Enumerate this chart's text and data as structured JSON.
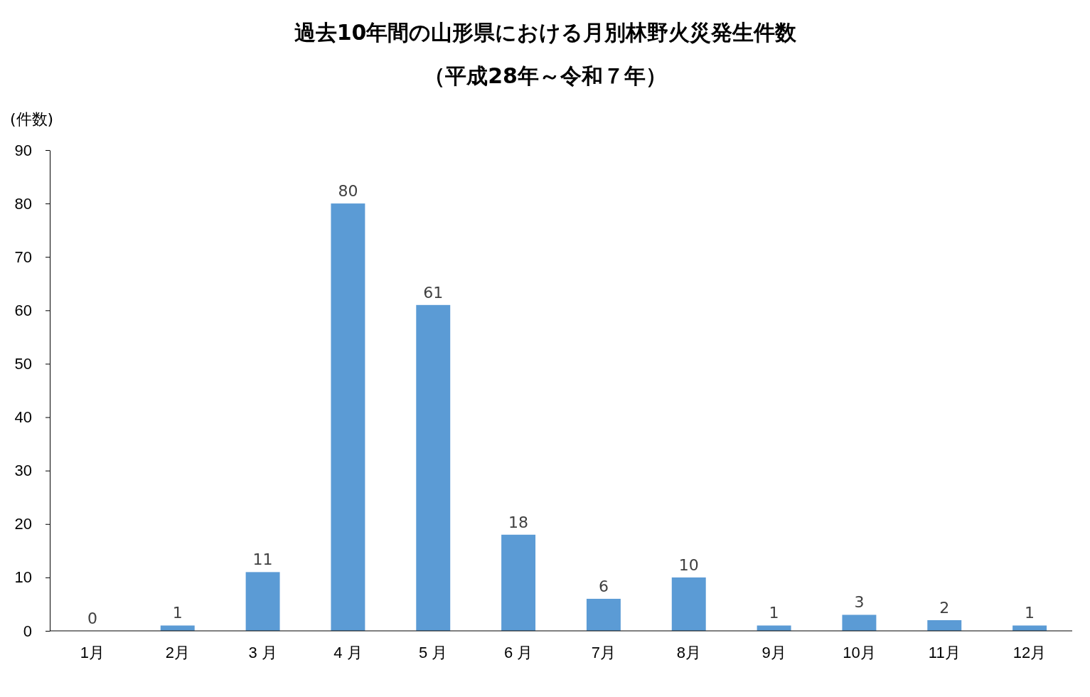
{
  "chart_data": {
    "type": "bar",
    "title": "過去10年間の山形県における月別林野火災発生件数",
    "subtitle": "（平成28年～令和７年）",
    "ylabel": "(件数)",
    "categories": [
      "1月",
      "2月",
      "3 月",
      "4 月",
      "5 月",
      "6 月",
      "7月",
      "8月",
      "9月",
      "10月",
      "11月",
      "12月"
    ],
    "values": [
      0,
      1,
      11,
      80,
      61,
      18,
      6,
      10,
      1,
      3,
      2,
      1
    ],
    "color": "#5b9bd5",
    "ylim": [
      0,
      90
    ],
    "yticks": [
      0,
      10,
      20,
      30,
      40,
      50,
      60,
      70,
      80,
      90
    ],
    "grid": false,
    "data_labels": true
  }
}
